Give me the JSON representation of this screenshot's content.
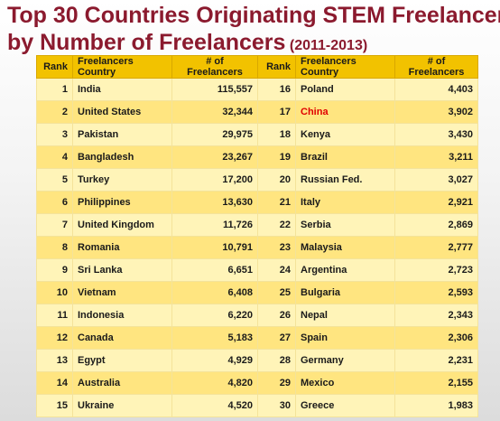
{
  "title": {
    "line1": "Top 30 Countries Originating STEM Freelancer",
    "line2": "by Number of Freelancers",
    "years": "(2011-2013)"
  },
  "chart_data": {
    "type": "table",
    "columns": [
      "Rank",
      "Freelancers Country",
      "# of Freelancers",
      "Rank",
      "Freelancers Country",
      "# of Freelancers"
    ],
    "left": [
      {
        "rank": "1",
        "country": "India",
        "count": "115,557"
      },
      {
        "rank": "2",
        "country": "United States",
        "count": "32,344"
      },
      {
        "rank": "3",
        "country": "Pakistan",
        "count": "29,975"
      },
      {
        "rank": "4",
        "country": "Bangladesh",
        "count": "23,267"
      },
      {
        "rank": "5",
        "country": "Turkey",
        "count": "17,200"
      },
      {
        "rank": "6",
        "country": "Philippines",
        "count": "13,630"
      },
      {
        "rank": "7",
        "country": "United Kingdom",
        "count": "11,726"
      },
      {
        "rank": "8",
        "country": "Romania",
        "count": "10,791"
      },
      {
        "rank": "9",
        "country": "Sri Lanka",
        "count": "6,651"
      },
      {
        "rank": "10",
        "country": "Vietnam",
        "count": "6,408"
      },
      {
        "rank": "11",
        "country": "Indonesia",
        "count": "6,220"
      },
      {
        "rank": "12",
        "country": "Canada",
        "count": "5,183"
      },
      {
        "rank": "13",
        "country": "Egypt",
        "count": "4,929"
      },
      {
        "rank": "14",
        "country": "Australia",
        "count": "4,820"
      },
      {
        "rank": "15",
        "country": "Ukraine",
        "count": "4,520"
      }
    ],
    "right": [
      {
        "rank": "16",
        "country": "Poland",
        "count": "4,403"
      },
      {
        "rank": "17",
        "country": "China",
        "count": "3,902",
        "highlight": true
      },
      {
        "rank": "18",
        "country": "Kenya",
        "count": "3,430"
      },
      {
        "rank": "19",
        "country": "Brazil",
        "count": "3,211"
      },
      {
        "rank": "20",
        "country": "Russian Fed.",
        "count": "3,027"
      },
      {
        "rank": "21",
        "country": "Italy",
        "count": "2,921"
      },
      {
        "rank": "22",
        "country": "Serbia",
        "count": "2,869"
      },
      {
        "rank": "23",
        "country": "Malaysia",
        "count": "2,777"
      },
      {
        "rank": "24",
        "country": "Argentina",
        "count": "2,723"
      },
      {
        "rank": "25",
        "country": "Bulgaria",
        "count": "2,593"
      },
      {
        "rank": "26",
        "country": "Nepal",
        "count": "2,343"
      },
      {
        "rank": "27",
        "country": "Spain",
        "count": "2,306"
      },
      {
        "rank": "28",
        "country": "Germany",
        "count": "2,231"
      },
      {
        "rank": "29",
        "country": "Mexico",
        "count": "2,155"
      },
      {
        "rank": "30",
        "country": "Greece",
        "count": "1,983"
      }
    ]
  },
  "colors": {
    "title": "#8b1a2e",
    "header": "#f2c200",
    "row_light": "#fff4b8",
    "row_dark": "#ffe580",
    "highlight": "#e00000"
  }
}
